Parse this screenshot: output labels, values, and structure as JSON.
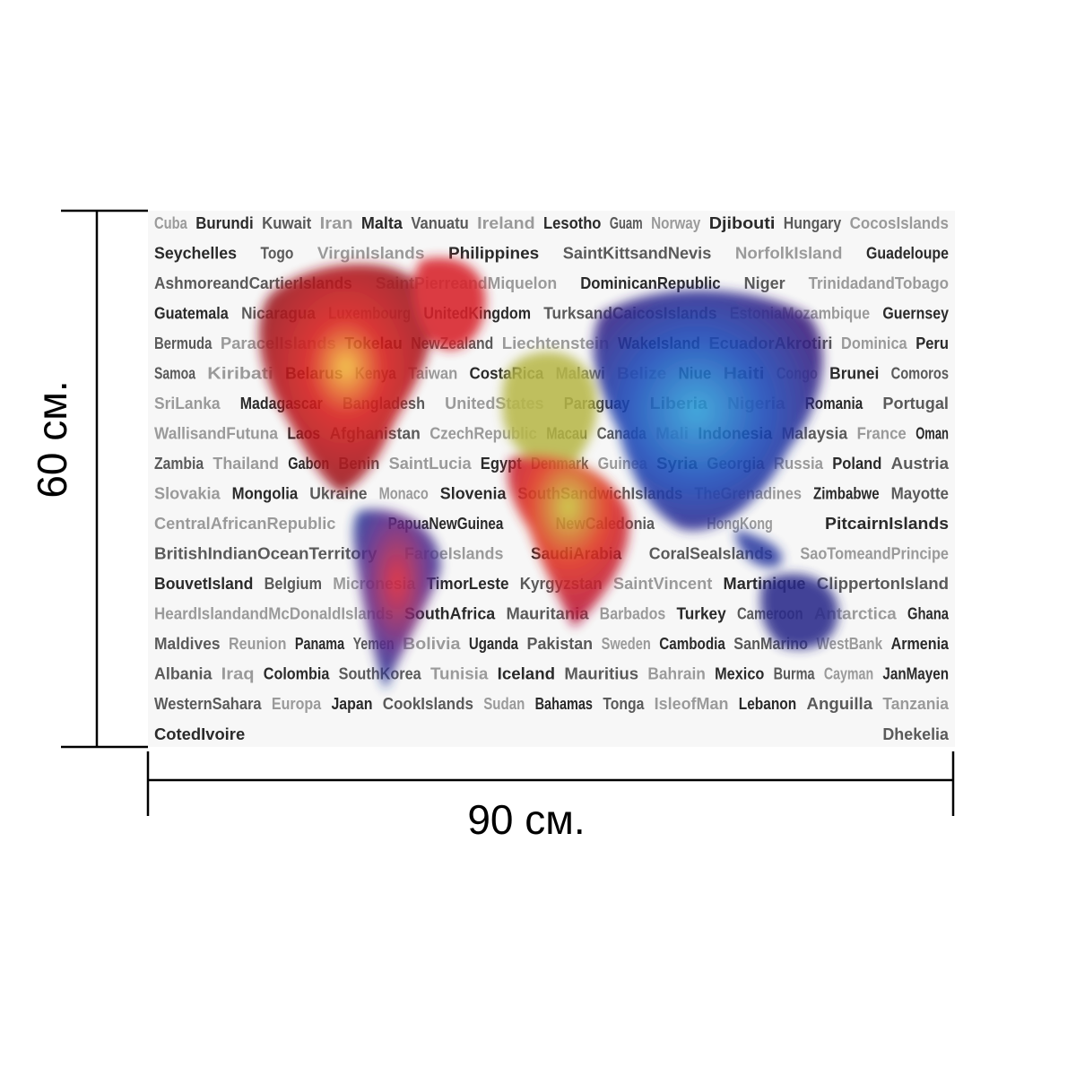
{
  "dimensions": {
    "height": "60 см.",
    "width": "90 см."
  },
  "poster": {
    "words": [
      "Cuba",
      "Burundi",
      "Kuwait",
      "Iran",
      "Malta",
      "Vanuatu",
      "Ireland",
      "Lesotho",
      "Guam",
      "Norway",
      "Djibouti",
      "Hungary",
      "CocosIslands",
      "Seychelles",
      "Togo",
      "VirginIslands",
      "Philippines",
      "SaintKittsandNevis",
      "NorfolkIsland",
      "Guadeloupe",
      "AshmoreandCartierIslands",
      "SaintPierreandMiquelon",
      "DominicanRepublic",
      "Niger",
      "TrinidadandTobago",
      "Guatemala",
      "Nicaragua",
      "Luxembourg",
      "UnitedKingdom",
      "TurksandCaicosIslands",
      "EstoniaMozambique",
      "Guernsey",
      "Bermuda",
      "ParacelIslands",
      "Tokelau",
      "NewZealand",
      "Liechtenstein",
      "WakeIsland",
      "EcuadorAkrotiri",
      "Dominica",
      "Peru",
      "Samoa",
      "Kiribati",
      "Belarus",
      "Kenya",
      "Taiwan",
      "CostaRica",
      "Malawi",
      "Belize",
      "Niue",
      "Haiti",
      "Congo",
      "Brunei",
      "Comoros",
      "SriLanka",
      "Madagascar",
      "Bangladesh",
      "UnitedStates",
      "Paraguay",
      "Liberia",
      "Nigeria",
      "Romania",
      "Portugal",
      "WallisandFutuna",
      "Laos",
      "Afghanistan",
      "CzechRepublic",
      "Macau",
      "Canada",
      "Mali",
      "Indonesia",
      "Malaysia",
      "France",
      "Oman",
      "Zambia",
      "Thailand",
      "Gabon",
      "Benin",
      "SaintLucia",
      "Egypt",
      "Denmark",
      "Guinea",
      "Syria",
      "Georgia",
      "Russia",
      "Poland",
      "Austria",
      "Slovakia",
      "Mongolia",
      "Ukraine",
      "Monaco",
      "Slovenia",
      "SouthSandwichIslands",
      "TheGrenadines",
      "Zimbabwe",
      "Mayotte",
      "CentralAfricanRepublic",
      "PapuaNewGuinea",
      "NewCaledonia",
      "HongKong",
      "PitcairnIslands",
      "BritishIndianOceanTerritory",
      "FaroeIslands",
      "SaudiArabia",
      "CoralSeaIslands",
      "SaoTomeandPrincipe",
      "BouvetIsland",
      "Belgium",
      "Micronesia",
      "TimorLeste",
      "Kyrgyzstan",
      "SaintVincent",
      "Martinique",
      "ClippertonIsland",
      "HeardIslandandMcDonaldIslands",
      "SouthAfrica",
      "Mauritania",
      "Barbados",
      "Turkey",
      "Cameroon",
      "Antarctica",
      "Ghana",
      "Maldives",
      "Reunion",
      "Panama",
      "Yemen",
      "Bolivia",
      "Uganda",
      "Pakistan",
      "Sweden",
      "Cambodia",
      "SanMarino",
      "WestBank",
      "Armenia",
      "Albania",
      "Iraq",
      "Colombia",
      "SouthKorea",
      "Tunisia",
      "Iceland",
      "Mauritius",
      "Bahrain",
      "Mexico",
      "Burma",
      "Cayman",
      "JanMayen",
      "WesternSahara",
      "Europa",
      "Japan",
      "CookIslands",
      "Sudan",
      "Bahamas",
      "Tonga",
      "IsleofMan",
      "Lebanon",
      "Anguilla",
      "Tanzania",
      "CotedIvoire",
      "Dhekelia"
    ]
  }
}
